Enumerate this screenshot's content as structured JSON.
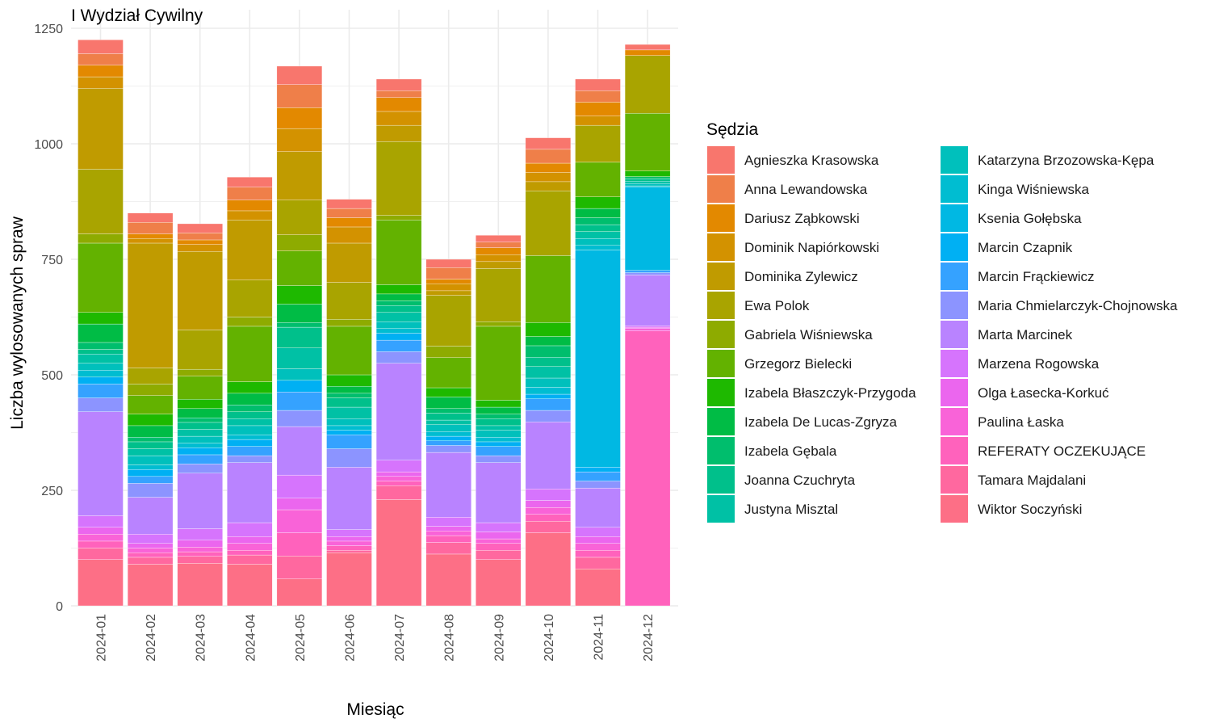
{
  "chart_data": {
    "type": "bar",
    "stacked": true,
    "title": "I Wydział Cywilny",
    "xlabel": "Miesiąc",
    "ylabel": "Liczba wylosowanych spraw",
    "ylim": [
      0,
      1250
    ],
    "y_ticks": [
      "0",
      "250",
      "500",
      "750",
      "1000",
      "1250"
    ],
    "grid": true,
    "legend_position": "right",
    "legend_title": "Sędzia",
    "categories": [
      "2024-01",
      "2024-02",
      "2024-03",
      "2024-04",
      "2024-05",
      "2024-06",
      "2024-07",
      "2024-08",
      "2024-09",
      "2024-10",
      "2024-11",
      "2024-12"
    ],
    "series": [
      {
        "name": "Agnieszka Krasowska",
        "color": "#F8766D",
        "values": [
          30,
          20,
          20,
          22,
          40,
          20,
          25,
          18,
          15,
          25,
          25,
          12
        ]
      },
      {
        "name": "Anna Lewandowska",
        "color": "#EF7F49",
        "values": [
          25,
          25,
          15,
          28,
          50,
          20,
          15,
          25,
          12,
          30,
          25,
          0
        ]
      },
      {
        "name": "Dariusz Ząbkowski",
        "color": "#E38900",
        "values": [
          25,
          10,
          10,
          23,
          45,
          20,
          30,
          10,
          15,
          20,
          30,
          12
        ]
      },
      {
        "name": "Dominik Napiórkowski",
        "color": "#D39200",
        "values": [
          25,
          10,
          15,
          20,
          50,
          35,
          30,
          15,
          15,
          20,
          20,
          0
        ]
      },
      {
        "name": "Dominika Zylewicz",
        "color": "#C09B00",
        "values": [
          175,
          270,
          170,
          130,
          105,
          85,
          35,
          10,
          15,
          20,
          0,
          0
        ]
      },
      {
        "name": "Ewa Polok",
        "color": "#A9A400",
        "values": [
          140,
          35,
          85,
          80,
          75,
          80,
          160,
          110,
          115,
          140,
          80,
          125
        ]
      },
      {
        "name": "Gabriela Wiśniewska",
        "color": "#8EAB00",
        "values": [
          20,
          25,
          15,
          20,
          35,
          15,
          10,
          25,
          10,
          0,
          0,
          0
        ]
      },
      {
        "name": "Grzegorz Bielecki",
        "color": "#63B200",
        "values": [
          150,
          40,
          50,
          120,
          75,
          105,
          140,
          65,
          160,
          145,
          75,
          125
        ]
      },
      {
        "name": "Izabela Błaszczyk-Przygoda",
        "color": "#1EB900",
        "values": [
          25,
          25,
          20,
          25,
          40,
          25,
          20,
          20,
          15,
          30,
          25,
          12
        ]
      },
      {
        "name": "Izabela De Lucas-Zgryza",
        "color": "#00BC45",
        "values": [
          40,
          25,
          20,
          25,
          40,
          15,
          15,
          25,
          15,
          20,
          20,
          0
        ]
      },
      {
        "name": "Izabela Gębala",
        "color": "#00BE6D",
        "values": [
          15,
          10,
          10,
          15,
          10,
          10,
          10,
          10,
          10,
          25,
          15,
          5
        ]
      },
      {
        "name": "Joanna Czuchryta",
        "color": "#00C08B",
        "values": [
          10,
          15,
          15,
          15,
          45,
          20,
          15,
          15,
          15,
          20,
          15,
          5
        ]
      },
      {
        "name": "Justyna Misztal",
        "color": "#00C1A5",
        "values": [
          20,
          15,
          15,
          15,
          45,
          25,
          20,
          10,
          10,
          25,
          15,
          5
        ]
      },
      {
        "name": "Katarzyna Brzozowska-Kępa",
        "color": "#00C0BC",
        "values": [
          15,
          20,
          15,
          20,
          25,
          15,
          15,
          15,
          15,
          20,
          15,
          5
        ]
      },
      {
        "name": "Kinga Wiśniewska",
        "color": "#00BDD1",
        "values": [
          15,
          10,
          10,
          10,
          0,
          10,
          10,
          10,
          10,
          15,
          10,
          3
        ]
      },
      {
        "name": "Ksenia Gołębska",
        "color": "#00B8E3",
        "values": [
          0,
          0,
          0,
          0,
          0,
          0,
          0,
          0,
          0,
          0,
          470,
          180
        ]
      },
      {
        "name": "Marcin Czapnik",
        "color": "#00B0F3",
        "values": [
          15,
          15,
          15,
          15,
          25,
          10,
          15,
          10,
          10,
          10,
          10,
          0
        ]
      },
      {
        "name": "Marcin Frąckiewicz",
        "color": "#35A2FF",
        "values": [
          30,
          15,
          20,
          20,
          40,
          30,
          25,
          10,
          20,
          25,
          20,
          5
        ]
      },
      {
        "name": "Maria Chmielarczyk-Chojnowska",
        "color": "#8C94FF",
        "values": [
          30,
          30,
          20,
          15,
          35,
          40,
          25,
          15,
          15,
          25,
          15,
          5
        ]
      },
      {
        "name": "Marta Marcinek",
        "color": "#B983FF",
        "values": [
          225,
          80,
          120,
          130,
          105,
          135,
          210,
          140,
          130,
          145,
          85,
          110
        ]
      },
      {
        "name": "Marzena Rogowska",
        "color": "#D674FD",
        "values": [
          25,
          20,
          25,
          30,
          50,
          15,
          25,
          20,
          20,
          25,
          20,
          3
        ]
      },
      {
        "name": "Olga Łasecka-Korkuć",
        "color": "#EB66EE",
        "values": [
          15,
          10,
          15,
          15,
          25,
          10,
          10,
          10,
          15,
          15,
          15,
          3
        ]
      },
      {
        "name": "Paulina Łaska",
        "color": "#F963D8",
        "values": [
          15,
          10,
          10,
          15,
          50,
          10,
          10,
          10,
          10,
          15,
          15,
          5
        ]
      },
      {
        "name": "REFERATY OCZEKUJĄCE",
        "color": "#FF62BC",
        "values": [
          15,
          10,
          10,
          10,
          50,
          10,
          10,
          15,
          15,
          15,
          15,
          595
        ]
      },
      {
        "name": "Tamara Majdalani",
        "color": "#FF689F",
        "values": [
          25,
          15,
          15,
          20,
          50,
          5,
          30,
          25,
          20,
          25,
          25,
          0
        ]
      },
      {
        "name": "Wiktor Soczyński",
        "color": "#FD6F86",
        "values": [
          100,
          90,
          92,
          90,
          58,
          115,
          230,
          112,
          100,
          158,
          80,
          0
        ]
      }
    ]
  }
}
